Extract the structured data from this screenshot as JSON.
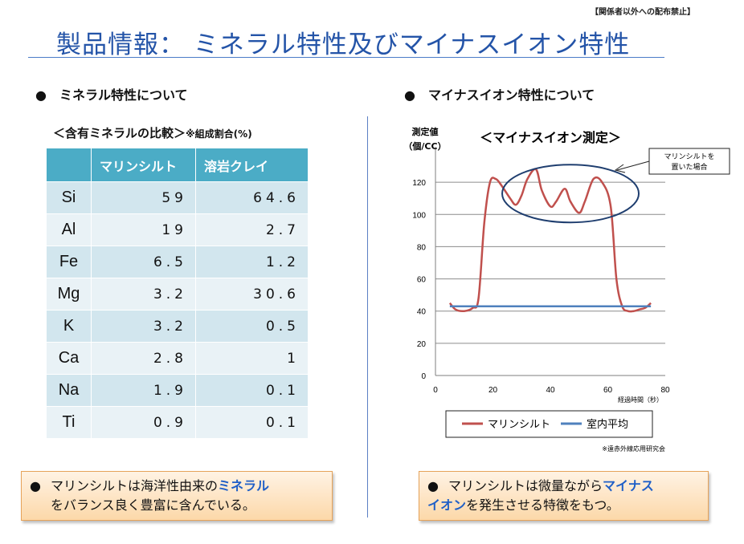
{
  "notice": "【関係者以外への配布禁止】",
  "title": "製品情報：  ミネラル特性及びマイナスイオン特性",
  "left": {
    "bullet": "●",
    "heading": "ミネラル特性について",
    "subtitle": "＜含有ミネラルの比較＞",
    "subtitle_note": "※組成割合(%)",
    "table": {
      "columns": [
        "",
        "マリンシルト",
        "溶岩クレイ"
      ],
      "rows": [
        {
          "element": "Si",
          "marine": "59",
          "lava": "64.6"
        },
        {
          "element": "Al",
          "marine": "19",
          "lava": "2.7"
        },
        {
          "element": "Fe",
          "marine": "6.5",
          "lava": "1.2"
        },
        {
          "element": "Mg",
          "marine": "3.2",
          "lava": "30.6"
        },
        {
          "element": "K",
          "marine": "3.2",
          "lava": "0.5"
        },
        {
          "element": "Ca",
          "marine": "2.8",
          "lava": "1"
        },
        {
          "element": "Na",
          "marine": "1.9",
          "lava": "0.1"
        },
        {
          "element": "Ti",
          "marine": "0.9",
          "lava": "0.1"
        }
      ]
    },
    "callout": {
      "bullet": "●",
      "text1": "マリンシルトは海洋性由来の",
      "highlight": "ミネラル",
      "text2": "をバランス良く豊富に含んでいる。"
    }
  },
  "right": {
    "bullet": "●",
    "heading": "マイナスイオン特性について",
    "callout": {
      "bullet": "●",
      "text1": "マリンシルトは微量ながら",
      "highlight1": "マイナス",
      "highlight2": "イオン",
      "text2": "を発生させる特徴をもつ。"
    }
  },
  "chart_data": {
    "type": "line",
    "title": "＜マイナスイオン測定＞",
    "ylabel": [
      "測定値",
      "（個/CC）"
    ],
    "xlabel": "経過時間（秒）",
    "xlim": [
      0,
      80
    ],
    "ylim": [
      0,
      140
    ],
    "xticks": [
      0,
      20,
      40,
      60,
      80
    ],
    "yticks": [
      0,
      20,
      40,
      60,
      80,
      100,
      120
    ],
    "grid": true,
    "legend_position": "bottom",
    "annotation": [
      "マリンシルトを",
      "置いた場合"
    ],
    "source_note": "※遠赤外線応用研究会",
    "series": [
      {
        "name": "マリンシルト",
        "color": "#c0504d",
        "x": [
          5,
          7,
          10,
          13,
          15,
          17,
          19,
          21,
          23,
          26,
          28,
          30,
          32,
          35,
          37,
          40,
          42,
          45,
          47,
          50,
          52,
          55,
          58,
          61,
          63,
          65,
          67,
          69,
          71,
          73,
          75
        ],
        "y": [
          45,
          41,
          40,
          42,
          48,
          95,
          120,
          122,
          118,
          110,
          106,
          112,
          122,
          128,
          115,
          105,
          108,
          116,
          108,
          101,
          108,
          122,
          120,
          105,
          60,
          43,
          40,
          40,
          41,
          42,
          45
        ]
      },
      {
        "name": "室内平均",
        "color": "#4f81bd",
        "x": [
          5,
          75
        ],
        "y": [
          43,
          43
        ]
      }
    ]
  }
}
